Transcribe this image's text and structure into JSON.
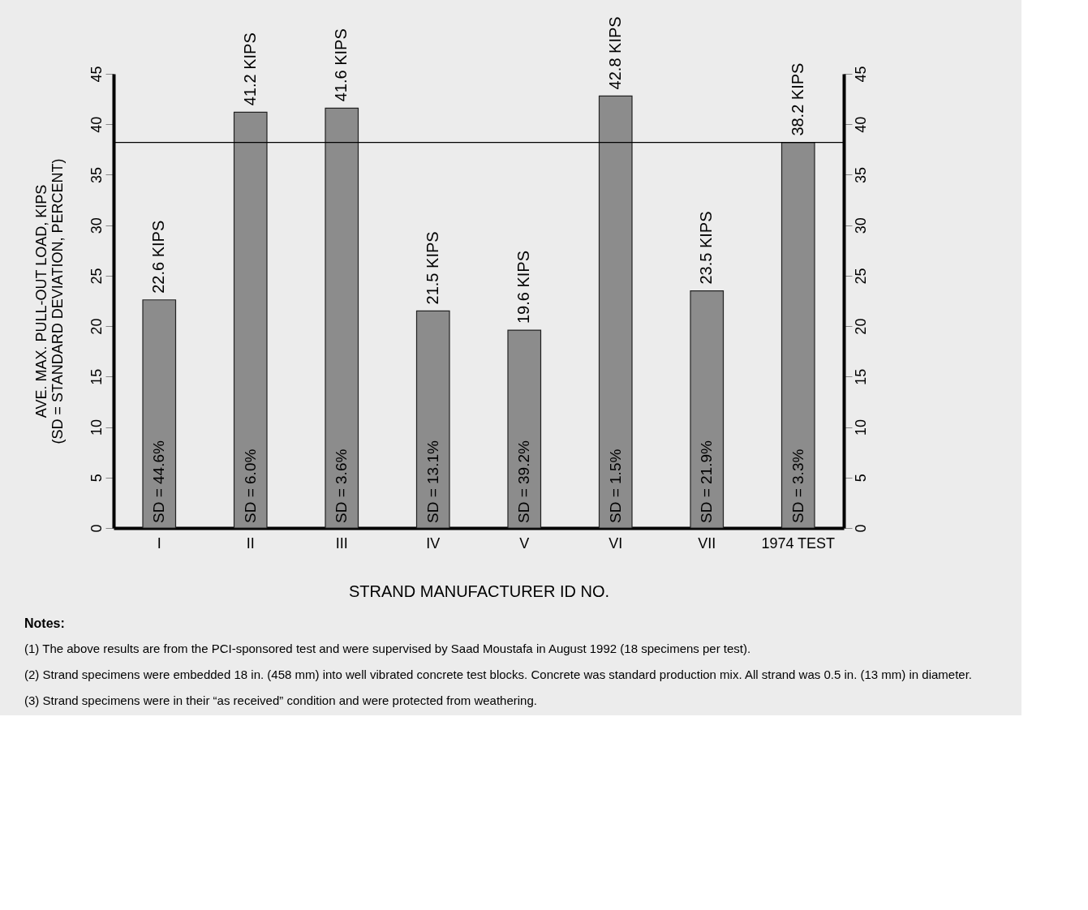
{
  "chart_data": {
    "type": "bar",
    "categories": [
      "I",
      "II",
      "III",
      "IV",
      "V",
      "VI",
      "VII",
      "1974 TEST"
    ],
    "values": [
      22.6,
      41.2,
      41.6,
      21.5,
      19.6,
      42.8,
      23.5,
      38.2
    ],
    "value_labels": [
      "22.6 KIPS",
      "41.2 KIPS",
      "41.6 KIPS",
      "21.5 KIPS",
      "19.6 KIPS",
      "42.8 KIPS",
      "23.5 KIPS",
      "38.2 KIPS"
    ],
    "color": "#8c8c8c",
    "ylabel": "AVE. MAX. PULL-OUT LOAD, KIPS\n(SD = STANDARD DEVIATION, PERCENT)",
    "xlabel": "STRAND MANUFACTURER ID NO.",
    "ylim": [
      0,
      45
    ],
    "yticks": [
      0,
      5,
      10,
      15,
      20,
      25,
      30,
      35,
      40,
      45
    ],
    "y2lim": [
      0,
      45
    ],
    "y2ticks": [
      0,
      5,
      10,
      15,
      20,
      25,
      30,
      35,
      40,
      45
    ],
    "ref_lines": [
      {
        "axis": "y",
        "value": 38.2
      }
    ],
    "grid": false,
    "annotations": [
      "SD = 44.6%",
      "SD = 6.0%",
      "SD = 3.6%",
      "SD = 13.1%",
      "SD = 39.2%",
      "SD = 1.5%",
      "SD = 21.9%",
      "SD = 3.3%",
      "Notes:",
      "(1) The above results are from the PCI-sponsored test and were supervised by Saad Moustafa in August 1992 (18 specimens per test).",
      "(2) Strand specimens were embedded 18 in. (458 mm) into well vibrated concrete test blocks. Concrete was standard production mix. All strand was 0.5 in. (13 mm) in diameter.",
      "(3) Strand specimens were in their “as received” condition and were protected from weathering."
    ]
  }
}
